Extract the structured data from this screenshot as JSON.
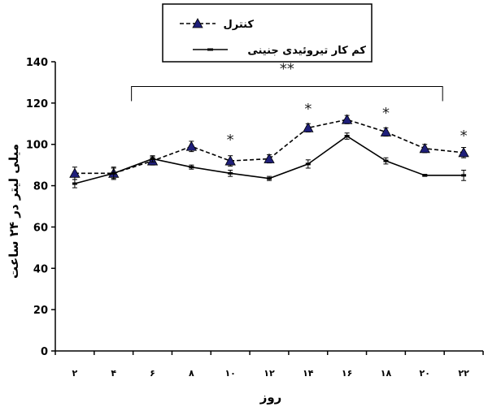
{
  "chart_data": {
    "type": "line",
    "xlabel": "روز",
    "ylabel": "میلی لیتر در ۲۴ ساعت",
    "categories": [
      "۲",
      "۴",
      "۶",
      "۸",
      "۱۰",
      "۱۲",
      "۱۴",
      "۱۶",
      "۱۸",
      "۲۰",
      "۲۲"
    ],
    "ylim": [
      0,
      140
    ],
    "yticks": [
      "0",
      "20",
      "40",
      "60",
      "80",
      "100",
      "120",
      "140"
    ],
    "legend_position": "top-center",
    "series": [
      {
        "name": "کنترل",
        "style": "dashed",
        "marker": "triangle",
        "color": "#1f1f7a",
        "values": [
          86,
          86,
          92,
          99,
          92,
          93,
          108,
          112,
          106,
          98,
          96
        ],
        "errors": [
          3,
          3,
          2,
          2.5,
          2.5,
          2,
          2,
          2,
          2,
          2,
          2.5
        ]
      },
      {
        "name": "کم کار تیروئیدی جنینی",
        "style": "solid",
        "marker": "dash",
        "color": "#000000",
        "values": [
          81,
          86,
          93,
          89,
          86,
          83.5,
          90.5,
          104,
          92,
          85,
          85
        ],
        "errors": [
          2,
          2.5,
          1.5,
          1,
          1.5,
          1,
          2,
          1.5,
          1.5,
          0.5,
          2.5
        ]
      }
    ],
    "annotations": {
      "bracket_label": "**",
      "bracket_from_index": 1.5,
      "bracket_to_index": 9.5,
      "bracket_y": 128,
      "stars": [
        {
          "index": 4,
          "y": 103,
          "label": "*"
        },
        {
          "index": 6,
          "y": 118,
          "label": "*"
        },
        {
          "index": 8,
          "y": 116,
          "label": "*"
        },
        {
          "index": 10,
          "y": 105,
          "label": "*"
        }
      ]
    }
  }
}
